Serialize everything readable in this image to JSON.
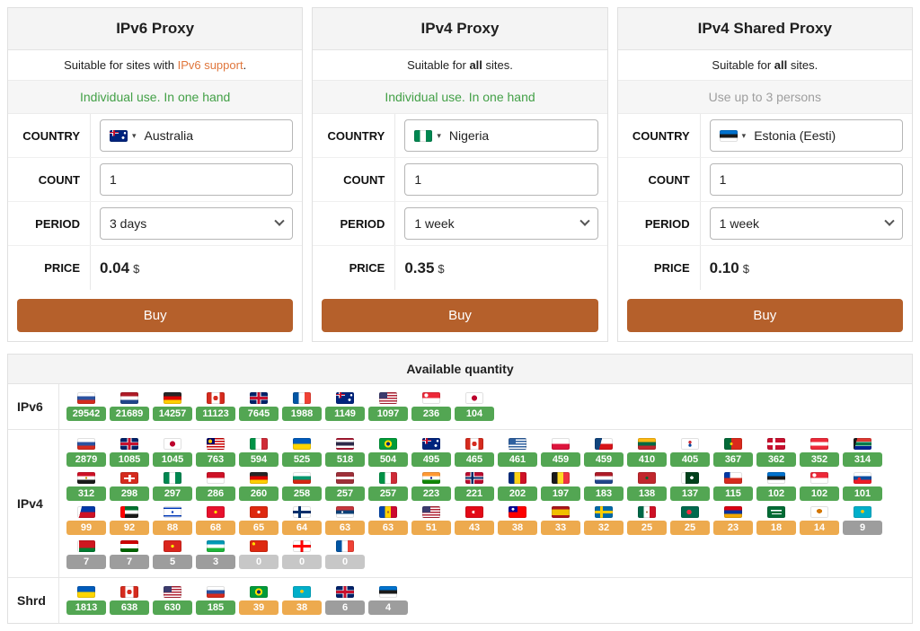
{
  "form_labels": {
    "country": "COUNTRY",
    "count": "COUNT",
    "period": "PERIOD",
    "price": "PRICE"
  },
  "icons": {
    "caret_down": "▾"
  },
  "colors": {
    "buy_button": "#b5602b",
    "orange_link": "#e0763c",
    "green_text": "#43a047",
    "muted_text": "#9e9e9e",
    "badge_green": "#53a653",
    "badge_orange": "#edaa4e",
    "badge_gray": "#9d9d9d",
    "badge_zero": "#c7c7c7"
  },
  "cards": [
    {
      "title": "IPv6 Proxy",
      "subtitle": {
        "prefix": "Suitable for sites with ",
        "emph": "IPv6 support",
        "suffix": "."
      },
      "usage": "Individual use. In one hand",
      "country": {
        "name": "Australia",
        "flag": "australia"
      },
      "count": "1",
      "period": "3 days",
      "price": "0.04",
      "currency": "$",
      "buy_label": "Buy"
    },
    {
      "title": "IPv4 Proxy",
      "subtitle": {
        "prefix": "Suitable for ",
        "emph": "all",
        "suffix": " sites."
      },
      "usage": "Individual use. In one hand",
      "country": {
        "name": "Nigeria",
        "flag": "nigeria"
      },
      "count": "1",
      "period": "1 week",
      "price": "0.35",
      "currency": "$",
      "buy_label": "Buy"
    },
    {
      "title": "IPv4 Shared Proxy",
      "subtitle": {
        "prefix": "Suitable for ",
        "emph": "all",
        "suffix": " sites."
      },
      "usage": "Use up to 3 persons",
      "country": {
        "name": "Estonia (Eesti)",
        "flag": "estonia"
      },
      "count": "1",
      "period": "1 week",
      "price": "0.10",
      "currency": "$",
      "buy_label": "Buy"
    }
  ],
  "quantity": {
    "title": "Available quantity",
    "rows": [
      {
        "label": "IPv6",
        "items": [
          {
            "country": "russia",
            "value": "29542",
            "level": "green"
          },
          {
            "country": "netherlands",
            "value": "21689",
            "level": "green"
          },
          {
            "country": "germany",
            "value": "14257",
            "level": "green"
          },
          {
            "country": "canada",
            "value": "11123",
            "level": "green"
          },
          {
            "country": "uk",
            "value": "7645",
            "level": "green"
          },
          {
            "country": "france",
            "value": "1988",
            "level": "green"
          },
          {
            "country": "australia",
            "value": "1149",
            "level": "green"
          },
          {
            "country": "usa",
            "value": "1097",
            "level": "green"
          },
          {
            "country": "singapore",
            "value": "236",
            "level": "green"
          },
          {
            "country": "japan",
            "value": "104",
            "level": "green"
          }
        ]
      },
      {
        "label": "IPv4",
        "items": [
          {
            "country": "russia",
            "value": "2879",
            "level": "green"
          },
          {
            "country": "uk",
            "value": "1085",
            "level": "green"
          },
          {
            "country": "japan",
            "value": "1045",
            "level": "green"
          },
          {
            "country": "malaysia",
            "value": "763",
            "level": "green"
          },
          {
            "country": "italy",
            "value": "594",
            "level": "green"
          },
          {
            "country": "ukraine",
            "value": "525",
            "level": "green"
          },
          {
            "country": "thailand",
            "value": "518",
            "level": "green"
          },
          {
            "country": "brazil",
            "value": "504",
            "level": "green"
          },
          {
            "country": "australia",
            "value": "495",
            "level": "green"
          },
          {
            "country": "canada",
            "value": "465",
            "level": "green"
          },
          {
            "country": "greece",
            "value": "461",
            "level": "green"
          },
          {
            "country": "poland",
            "value": "459",
            "level": "green"
          },
          {
            "country": "czechia",
            "value": "459",
            "level": "green"
          },
          {
            "country": "lithuania",
            "value": "410",
            "level": "green"
          },
          {
            "country": "south-korea",
            "value": "405",
            "level": "green"
          },
          {
            "country": "portugal",
            "value": "367",
            "level": "green"
          },
          {
            "country": "denmark",
            "value": "362",
            "level": "green"
          },
          {
            "country": "austria",
            "value": "352",
            "level": "green"
          },
          {
            "country": "south-africa",
            "value": "314",
            "level": "green"
          },
          {
            "country": "egypt",
            "value": "312",
            "level": "green"
          },
          {
            "country": "switzerland",
            "value": "298",
            "level": "green"
          },
          {
            "country": "nigeria",
            "value": "297",
            "level": "green"
          },
          {
            "country": "indonesia",
            "value": "286",
            "level": "green"
          },
          {
            "country": "germany",
            "value": "260",
            "level": "green"
          },
          {
            "country": "bulgaria",
            "value": "258",
            "level": "green"
          },
          {
            "country": "latvia",
            "value": "257",
            "level": "green"
          },
          {
            "country": "italy",
            "value": "257",
            "level": "green"
          },
          {
            "country": "india",
            "value": "223",
            "level": "green"
          },
          {
            "country": "norway",
            "value": "221",
            "level": "green"
          },
          {
            "country": "romania",
            "value": "202",
            "level": "green"
          },
          {
            "country": "belgium",
            "value": "197",
            "level": "green"
          },
          {
            "country": "netherlands",
            "value": "183",
            "level": "green"
          },
          {
            "country": "morocco",
            "value": "138",
            "level": "green"
          },
          {
            "country": "pakistan",
            "value": "137",
            "level": "green"
          },
          {
            "country": "chile",
            "value": "115",
            "level": "green"
          },
          {
            "country": "estonia",
            "value": "102",
            "level": "green"
          },
          {
            "country": "singapore",
            "value": "102",
            "level": "green"
          },
          {
            "country": "slovakia",
            "value": "101",
            "level": "green"
          },
          {
            "country": "philippines",
            "value": "99",
            "level": "orange"
          },
          {
            "country": "uae",
            "value": "92",
            "level": "orange"
          },
          {
            "country": "israel",
            "value": "88",
            "level": "orange"
          },
          {
            "country": "kyrgyzstan",
            "value": "68",
            "level": "orange"
          },
          {
            "country": "hong-kong",
            "value": "65",
            "level": "orange"
          },
          {
            "country": "finland",
            "value": "64",
            "level": "orange"
          },
          {
            "country": "serbia",
            "value": "63",
            "level": "orange"
          },
          {
            "country": "moldova",
            "value": "63",
            "level": "orange"
          },
          {
            "country": "usa",
            "value": "51",
            "level": "orange"
          },
          {
            "country": "turkey",
            "value": "43",
            "level": "orange"
          },
          {
            "country": "taiwan",
            "value": "38",
            "level": "orange"
          },
          {
            "country": "spain",
            "value": "33",
            "level": "orange"
          },
          {
            "country": "sweden",
            "value": "32",
            "level": "orange"
          },
          {
            "country": "mexico",
            "value": "25",
            "level": "orange"
          },
          {
            "country": "bangladesh",
            "value": "25",
            "level": "orange"
          },
          {
            "country": "armenia",
            "value": "23",
            "level": "orange"
          },
          {
            "country": "saudi-arabia",
            "value": "18",
            "level": "orange"
          },
          {
            "country": "cyprus",
            "value": "14",
            "level": "orange"
          },
          {
            "country": "kazakhstan",
            "value": "9",
            "level": "gray"
          },
          {
            "country": "belarus",
            "value": "7",
            "level": "gray"
          },
          {
            "country": "tajikistan",
            "value": "7",
            "level": "gray"
          },
          {
            "country": "vietnam",
            "value": "5",
            "level": "gray"
          },
          {
            "country": "uzbekistan",
            "value": "3",
            "level": "gray"
          },
          {
            "country": "china",
            "value": "0",
            "level": "zero"
          },
          {
            "country": "georgia",
            "value": "0",
            "level": "zero"
          },
          {
            "country": "france",
            "value": "0",
            "level": "zero"
          }
        ]
      },
      {
        "label": "Shrd",
        "items": [
          {
            "country": "ukraine",
            "value": "1813",
            "level": "green"
          },
          {
            "country": "canada",
            "value": "638",
            "level": "green"
          },
          {
            "country": "usa",
            "value": "630",
            "level": "green"
          },
          {
            "country": "russia",
            "value": "185",
            "level": "green"
          },
          {
            "country": "brazil",
            "value": "39",
            "level": "orange"
          },
          {
            "country": "kazakhstan",
            "value": "38",
            "level": "orange"
          },
          {
            "country": "uk",
            "value": "6",
            "level": "gray"
          },
          {
            "country": "estonia",
            "value": "4",
            "level": "gray"
          }
        ]
      }
    ]
  }
}
